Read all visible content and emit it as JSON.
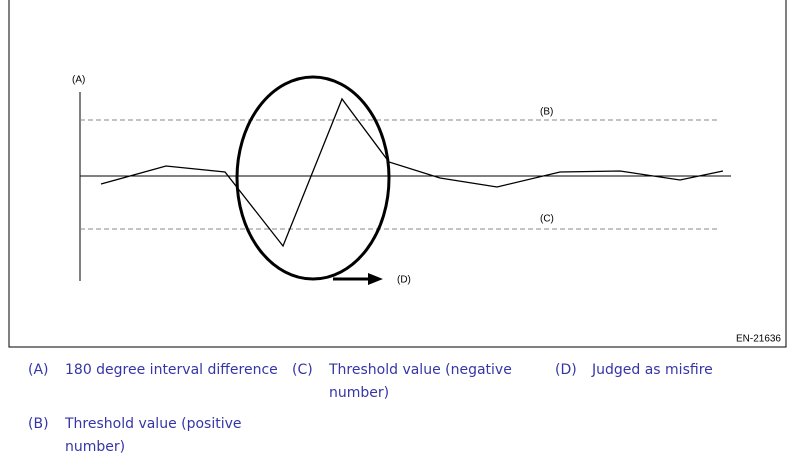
{
  "figure": {
    "labels": {
      "a": "(A)",
      "b": "(B)",
      "c": "(C)",
      "d": "(D)"
    },
    "code": "EN-21636"
  },
  "legend": [
    {
      "key": "(A)",
      "text": "180 degree interval difference"
    },
    {
      "key": "(B)",
      "text": "Threshold value (positive number)"
    },
    {
      "key": "(C)",
      "text": "Threshold value (negative number)"
    },
    {
      "key": "(D)",
      "text": "Judged as misfire"
    }
  ]
}
